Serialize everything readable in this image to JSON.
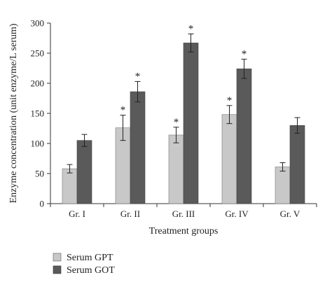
{
  "chart_data": {
    "type": "bar",
    "xlabel": "Treatment groups",
    "ylabel": "Enzyme concentration (unit enzyme/L serum)",
    "categories": [
      "Gr. I",
      "Gr. II",
      "Gr. III",
      "Gr. IV",
      "Gr. V"
    ],
    "ylim": [
      0,
      300
    ],
    "yticks": [
      0,
      50,
      100,
      150,
      200,
      250,
      300
    ],
    "grid": false,
    "legend_position": "bottom-left",
    "series": [
      {
        "name": "Serum GPT",
        "color": "#c8c8c8",
        "values": [
          58,
          126,
          114,
          148,
          61
        ],
        "errors": [
          7,
          21,
          13,
          15,
          7
        ],
        "significant": [
          false,
          true,
          true,
          true,
          false
        ]
      },
      {
        "name": "Serum GOT",
        "color": "#5a5a5a",
        "values": [
          105,
          186,
          267,
          224,
          130
        ],
        "errors": [
          10,
          17,
          15,
          16,
          13
        ],
        "significant": [
          false,
          true,
          true,
          true,
          false
        ]
      }
    ],
    "significance_marker": "*"
  }
}
